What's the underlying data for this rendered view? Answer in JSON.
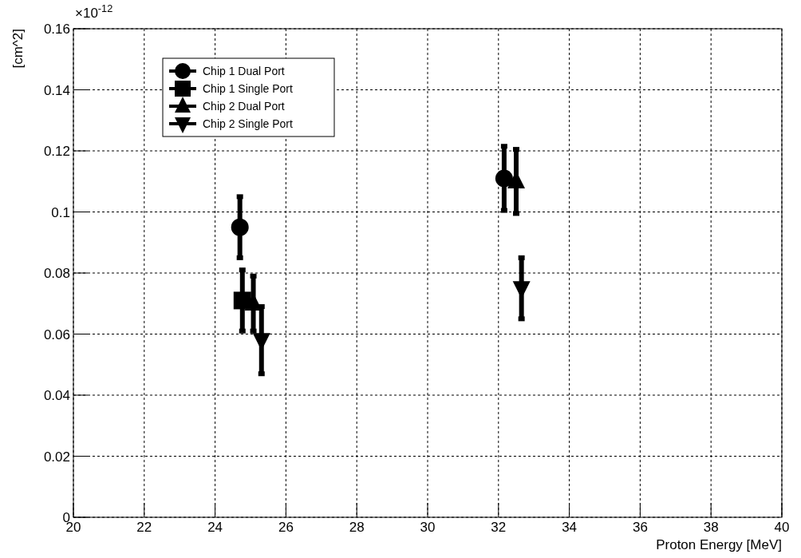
{
  "chart_data": {
    "type": "scatter",
    "xlabel": "Proton Energy [MeV]",
    "ylabel": "[cm^2]",
    "annotations": [
      "×10$^{-12}$"
    ],
    "xlim": [
      20,
      40
    ],
    "xticks": [
      20,
      22,
      24,
      26,
      28,
      30,
      32,
      34,
      36,
      38,
      40
    ],
    "ylim": [
      0,
      0.16
    ],
    "yticks": [
      0,
      0.02,
      0.04,
      0.06,
      0.08,
      0.1,
      0.12,
      0.14,
      0.16
    ],
    "grid": true,
    "legend": "top left",
    "series": [
      {
        "name": "Chip 1 Dual Port",
        "color": "#000000",
        "marker": "circle",
        "x": [
          24.7,
          32.16
        ],
        "values": [
          0.095,
          0.111
        ],
        "errors": [
          0.01,
          0.0105
        ]
      },
      {
        "name": "Chip 1 Single Port",
        "color": "#000000",
        "marker": "square",
        "x": [
          24.77
        ],
        "values": [
          0.071
        ],
        "errors": [
          0.01
        ]
      },
      {
        "name": "Chip 2 Dual Port",
        "color": "#000000",
        "marker": "triangle",
        "x": [
          25.08,
          32.5
        ],
        "values": [
          0.07,
          0.11
        ],
        "errors": [
          0.009,
          0.0105
        ]
      },
      {
        "name": "Chip 2 Single Port",
        "color": "#000000",
        "marker": "triangle-down",
        "x": [
          25.31,
          32.65
        ],
        "values": [
          0.058,
          0.075
        ],
        "errors": [
          0.011,
          0.01
        ]
      }
    ]
  }
}
